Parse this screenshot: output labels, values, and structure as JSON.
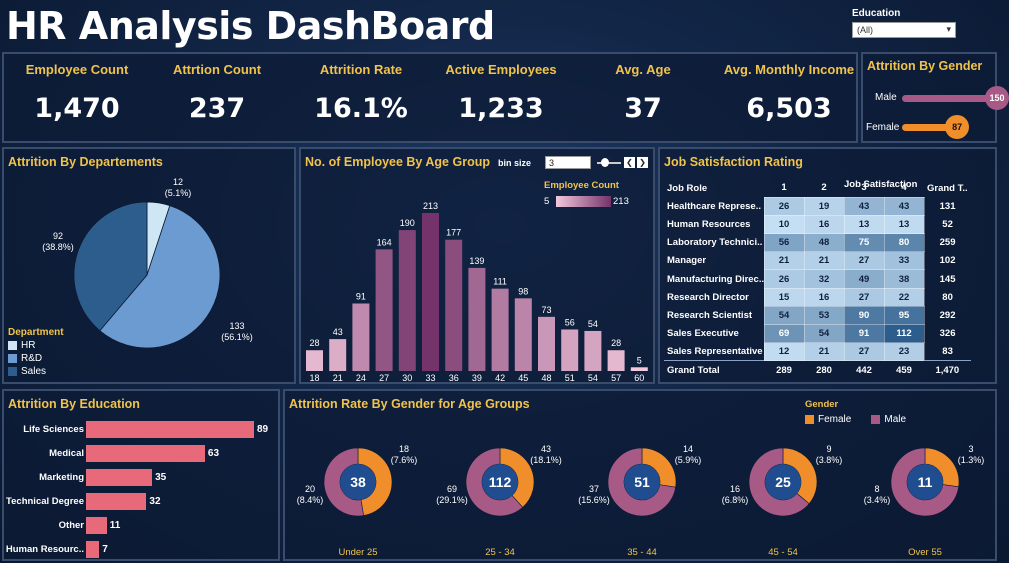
{
  "title": "HR Analysis DashBoard",
  "filter": {
    "label": "Education",
    "value": "(All)"
  },
  "kpis": [
    {
      "label": "Employee Count",
      "value": "1,470"
    },
    {
      "label": "Attrtion Count",
      "value": "237"
    },
    {
      "label": "Attrition Rate",
      "value": "16.1%"
    },
    {
      "label": "Active Employees",
      "value": "1,233"
    },
    {
      "label": "Avg. Age",
      "value": "37"
    },
    {
      "label": "Avg. Monthly Income",
      "value": "6,503"
    }
  ],
  "colors": {
    "accent": "#f1c34a",
    "hr": "#cfe6f5",
    "rnd": "#6b9bd0",
    "sales": "#2d5d8c",
    "male": "#a85a86",
    "female": "#f08e2c",
    "bar": "#e8697a",
    "donut_center": "#1f4d8f"
  },
  "panels": {
    "gender": "Attrition By Gender",
    "dept": "Attrition By Departements",
    "age": "No. of Employee By Age Group",
    "jobsat": "Job Satisfaction Rating",
    "edu": "Attrition By Education",
    "gender_age": "Attrition Rate By Gender for Age Groups"
  },
  "age_controls": {
    "bin_label": "bin size",
    "bin_value": "3",
    "legend_title": "Employee Count",
    "legend_min": "5",
    "legend_max": "213"
  },
  "dept_legend": {
    "title": "Department",
    "items": [
      "HR",
      "R&D",
      "Sales"
    ]
  },
  "gender_legend": {
    "title": "Gender",
    "female": "Female",
    "male": "Male"
  },
  "jobsat_headers": {
    "role": "Job Role",
    "group": "Job Satisfaction",
    "grand": "Grand T..",
    "cols": [
      "1",
      "2",
      "3",
      "4"
    ]
  },
  "jobsat_total_label": "Grand Total",
  "chart_data": [
    {
      "type": "bar",
      "title": "Attrition By Gender",
      "categories": [
        "Male",
        "Female"
      ],
      "values": [
        150,
        87
      ],
      "value_labels": [
        "150",
        "87"
      ]
    },
    {
      "type": "pie",
      "title": "Attrition By Departements",
      "categories": [
        "HR",
        "R&D",
        "Sales"
      ],
      "values": [
        12,
        133,
        92
      ],
      "value_labels": [
        "12",
        "133",
        "92"
      ],
      "percent_labels": [
        "(5.1%)",
        "(56.1%)",
        "(38.8%)"
      ]
    },
    {
      "type": "bar",
      "title": "No. of Employee By Age Group",
      "categories": [
        "18",
        "21",
        "24",
        "27",
        "30",
        "33",
        "36",
        "39",
        "42",
        "45",
        "48",
        "51",
        "54",
        "57",
        "60"
      ],
      "values": [
        28,
        43,
        91,
        164,
        190,
        213,
        177,
        139,
        111,
        98,
        73,
        56,
        54,
        28,
        5
      ],
      "value_labels": [
        "28",
        "43",
        "91",
        "164",
        "190",
        "213",
        "177",
        "139",
        "111",
        "98",
        "73",
        "56",
        "54",
        "28",
        "5"
      ],
      "ylim": [
        0,
        213
      ]
    },
    {
      "type": "table",
      "title": "Job Satisfaction Rating",
      "rows": [
        {
          "role": "Healthcare Represe..",
          "vals": [
            "26",
            "19",
            "43",
            "43"
          ],
          "total": "131"
        },
        {
          "role": "Human Resources",
          "vals": [
            "10",
            "16",
            "13",
            "13"
          ],
          "total": "52"
        },
        {
          "role": "Laboratory Technici..",
          "vals": [
            "56",
            "48",
            "75",
            "80"
          ],
          "total": "259"
        },
        {
          "role": "Manager",
          "vals": [
            "21",
            "21",
            "27",
            "33"
          ],
          "total": "102"
        },
        {
          "role": "Manufacturing Direc..",
          "vals": [
            "26",
            "32",
            "49",
            "38"
          ],
          "total": "145"
        },
        {
          "role": "Research Director",
          "vals": [
            "15",
            "16",
            "27",
            "22"
          ],
          "total": "80"
        },
        {
          "role": "Research Scientist",
          "vals": [
            "54",
            "53",
            "90",
            "95"
          ],
          "total": "292"
        },
        {
          "role": "Sales Executive",
          "vals": [
            "69",
            "54",
            "91",
            "112"
          ],
          "total": "326"
        },
        {
          "role": "Sales Representative",
          "vals": [
            "12",
            "21",
            "27",
            "23"
          ],
          "total": "83"
        }
      ],
      "totals": [
        "289",
        "280",
        "442",
        "459"
      ],
      "grand_total": "1,470"
    },
    {
      "type": "bar",
      "title": "Attrition By Education",
      "categories": [
        "Life Sciences",
        "Medical",
        "Marketing",
        "Technical Degree",
        "Other",
        "Human Resourc.."
      ],
      "values": [
        89,
        63,
        35,
        32,
        11,
        7
      ],
      "value_labels": [
        "89",
        "63",
        "35",
        "32",
        "11",
        "7"
      ]
    },
    {
      "type": "pie",
      "title": "Attrition Rate By Gender for Age Groups",
      "groups": [
        {
          "name": "Under 25",
          "total": "38",
          "female": 18,
          "female_label": "18",
          "female_pct": "(7.6%)",
          "male": 20,
          "male_label": "20",
          "male_pct": "(8.4%)"
        },
        {
          "name": "25 - 34",
          "total": "112",
          "female": 43,
          "female_label": "43",
          "female_pct": "(18.1%)",
          "male": 69,
          "male_label": "69",
          "male_pct": "(29.1%)"
        },
        {
          "name": "35 - 44",
          "total": "51",
          "female": 14,
          "female_label": "14",
          "female_pct": "(5.9%)",
          "male": 37,
          "male_label": "37",
          "male_pct": "(15.6%)"
        },
        {
          "name": "45 - 54",
          "total": "25",
          "female": 9,
          "female_label": "9",
          "female_pct": "(3.8%)",
          "male": 16,
          "male_label": "16",
          "male_pct": "(6.8%)"
        },
        {
          "name": "Over 55",
          "total": "11",
          "female": 3,
          "female_label": "3",
          "female_pct": "(1.3%)",
          "male": 8,
          "male_label": "8",
          "male_pct": "(3.4%)"
        }
      ]
    }
  ]
}
